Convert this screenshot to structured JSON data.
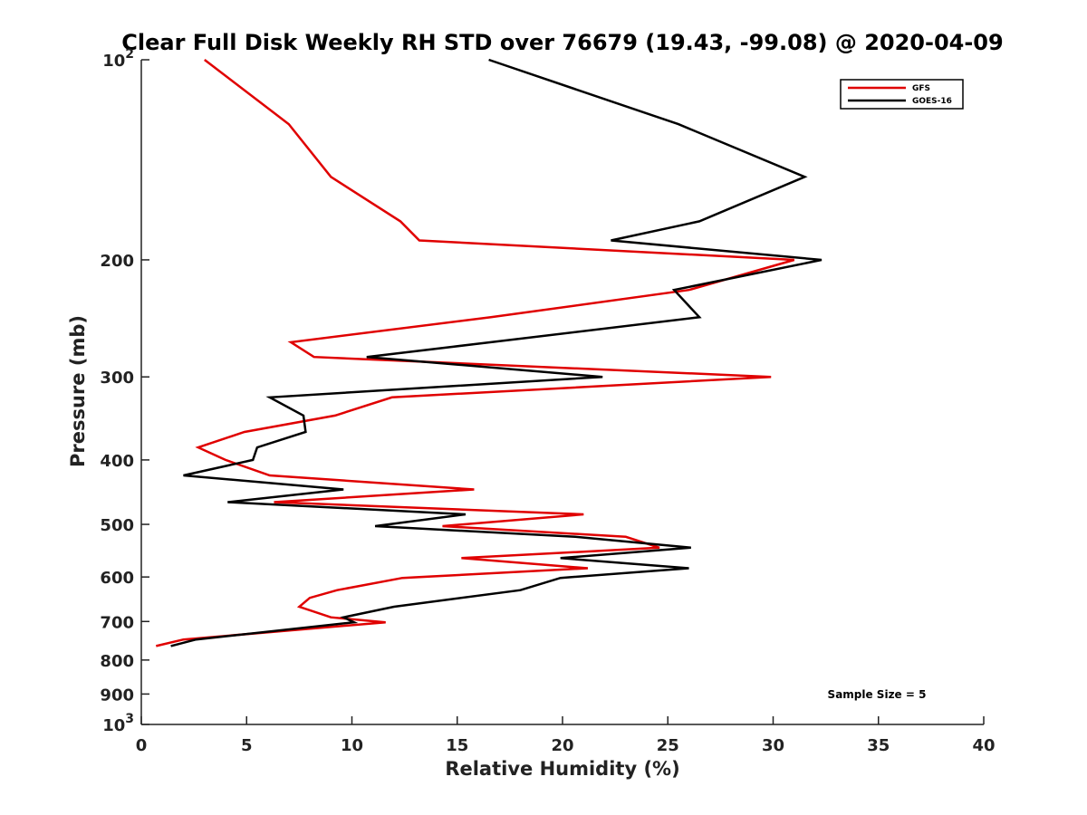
{
  "chart_data": {
    "type": "line",
    "title": "Clear Full Disk Weekly RH STD over 76679 (19.43, -99.08) @ 2020-04-09",
    "xlabel": "Relative Humidity (%)",
    "ylabel": "Pressure (mb)",
    "xlim": [
      0,
      40
    ],
    "ylim": [
      100,
      1000
    ],
    "yscale": "log",
    "yreversed": true,
    "grid": false,
    "legend_position": "top-right",
    "x_ticks": [
      0,
      5,
      10,
      15,
      20,
      25,
      30,
      35,
      40
    ],
    "x_tick_labels": [
      "0",
      "5",
      "10",
      "15",
      "20",
      "25",
      "30",
      "35",
      "40"
    ],
    "y_ticks": [
      100,
      200,
      300,
      400,
      500,
      600,
      700,
      800,
      900,
      1000
    ],
    "y_tick_labels": [
      {
        "base": "10",
        "exp": "2"
      },
      {
        "base": "200",
        "exp": ""
      },
      {
        "base": "300",
        "exp": ""
      },
      {
        "base": "400",
        "exp": ""
      },
      {
        "base": "500",
        "exp": ""
      },
      {
        "base": "600",
        "exp": ""
      },
      {
        "base": "700",
        "exp": ""
      },
      {
        "base": "800",
        "exp": ""
      },
      {
        "base": "900",
        "exp": ""
      },
      {
        "base": "10",
        "exp": "3"
      }
    ],
    "series": [
      {
        "name": "GFS",
        "color": "#e00000",
        "points": [
          [
            3.0,
            100
          ],
          [
            7.0,
            125
          ],
          [
            9.0,
            150
          ],
          [
            12.3,
            175
          ],
          [
            13.2,
            187
          ],
          [
            31.0,
            200
          ],
          [
            26.0,
            222
          ],
          [
            16.6,
            244
          ],
          [
            7.1,
            266
          ],
          [
            8.2,
            280
          ],
          [
            29.9,
            300
          ],
          [
            11.9,
            322
          ],
          [
            9.2,
            343
          ],
          [
            4.9,
            363
          ],
          [
            2.7,
            383
          ],
          [
            4.0,
            400
          ],
          [
            6.1,
            422
          ],
          [
            15.8,
            443
          ],
          [
            6.3,
            463
          ],
          [
            21.0,
            483
          ],
          [
            14.3,
            503
          ],
          [
            23.0,
            522
          ],
          [
            24.6,
            542
          ],
          [
            15.2,
            562
          ],
          [
            21.2,
            582
          ],
          [
            12.4,
            602
          ],
          [
            9.3,
            628
          ],
          [
            8.0,
            645
          ],
          [
            7.5,
            665
          ],
          [
            9.0,
            690
          ],
          [
            11.6,
            702
          ],
          [
            2.0,
            745
          ],
          [
            0.7,
            762
          ]
        ]
      },
      {
        "name": "GOES-16",
        "color": "#000000",
        "points": [
          [
            16.5,
            100
          ],
          [
            25.5,
            125
          ],
          [
            31.5,
            150
          ],
          [
            26.5,
            175
          ],
          [
            22.3,
            187
          ],
          [
            32.3,
            200
          ],
          [
            25.3,
            222
          ],
          [
            26.5,
            244
          ],
          [
            16.6,
            266
          ],
          [
            10.7,
            280
          ],
          [
            21.9,
            300
          ],
          [
            6.1,
            322
          ],
          [
            7.7,
            343
          ],
          [
            7.8,
            363
          ],
          [
            5.5,
            383
          ],
          [
            5.3,
            400
          ],
          [
            2.0,
            422
          ],
          [
            9.6,
            443
          ],
          [
            4.1,
            463
          ],
          [
            15.4,
            483
          ],
          [
            11.1,
            503
          ],
          [
            20.6,
            522
          ],
          [
            26.1,
            542
          ],
          [
            19.9,
            562
          ],
          [
            26.0,
            582
          ],
          [
            19.9,
            602
          ],
          [
            18.0,
            628
          ],
          [
            12.0,
            665
          ],
          [
            9.6,
            690
          ],
          [
            10.1,
            702
          ],
          [
            2.6,
            745
          ],
          [
            1.4,
            762
          ]
        ]
      }
    ],
    "annotation": "Sample Size = 5"
  }
}
